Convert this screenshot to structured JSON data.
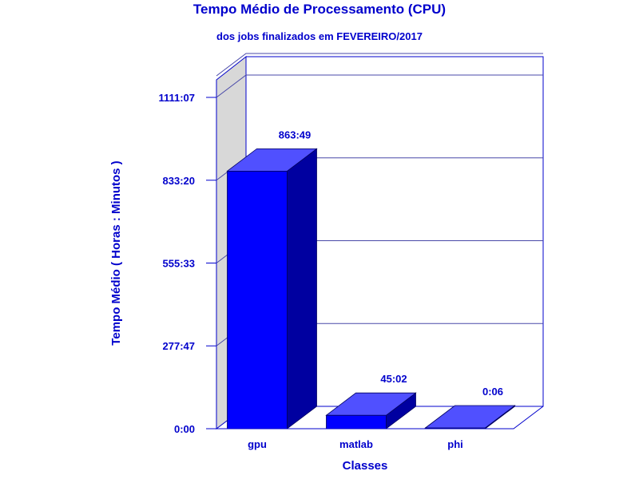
{
  "chart_data": {
    "type": "bar",
    "title": "Tempo Médio de Processamento (CPU)",
    "subtitle": "dos jobs finalizados em FEVEREIRO/2017",
    "xlabel": "Classes",
    "ylabel": "Tempo Médio ( Horas : Minutos )",
    "categories": [
      "gpu",
      "matlab",
      "phi"
    ],
    "values_minutes": [
      51829,
      2702,
      6
    ],
    "data_labels": [
      "863:49",
      "45:02",
      "0:06"
    ],
    "yticks_minutes": [
      0,
      16667,
      33333,
      50000,
      66667
    ],
    "ytick_labels": [
      "0:00",
      "277:47",
      "555:33",
      "833:20",
      "1111:07"
    ],
    "ylim_minutes": [
      0,
      66667
    ],
    "grid": true,
    "style": "3d",
    "colors": {
      "text": "#0000cc",
      "bar_front": "#0000ff",
      "bar_top": "#5050ff",
      "bar_side": "#0000a0",
      "axis": "#0000cc",
      "wall": "#d8d8d8",
      "grid": "#4848a8"
    }
  }
}
